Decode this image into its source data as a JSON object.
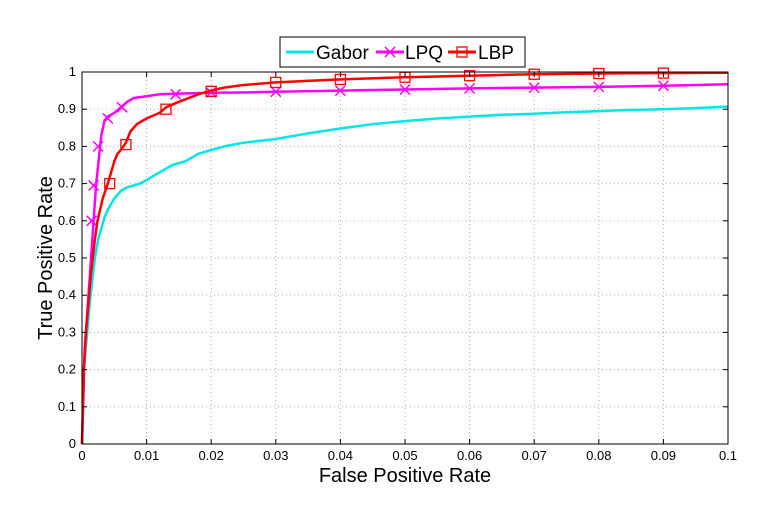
{
  "chart_data": {
    "type": "line",
    "title": "",
    "xlabel": "False Positive Rate",
    "ylabel": "True Positive Rate",
    "xlim": [
      0,
      0.1
    ],
    "ylim": [
      0,
      1
    ],
    "grid": true,
    "legend_position": "top-center",
    "x_tick_labels": [
      "0",
      "0.01",
      "0.02",
      "0.03",
      "0.04",
      "0.05",
      "0.06",
      "0.07",
      "0.08",
      "0.09",
      "0.1"
    ],
    "y_tick_labels": [
      "0",
      "0.1",
      "0.2",
      "0.3",
      "0.4",
      "0.5",
      "0.6",
      "0.7",
      "0.8",
      "0.9",
      "1"
    ],
    "series": [
      {
        "name": "Gabor",
        "color": "#00e5e5",
        "marker": "none",
        "x": [
          0,
          0.0003,
          0.0008,
          0.0012,
          0.0016,
          0.002,
          0.0025,
          0.003,
          0.0035,
          0.004,
          0.005,
          0.006,
          0.007,
          0.008,
          0.009,
          0.01,
          0.012,
          0.014,
          0.016,
          0.018,
          0.02,
          0.022,
          0.025,
          0.03,
          0.035,
          0.04,
          0.045,
          0.05,
          0.055,
          0.06,
          0.065,
          0.07,
          0.075,
          0.08,
          0.085,
          0.09,
          0.095,
          0.1
        ],
        "y": [
          0,
          0.2,
          0.3,
          0.38,
          0.44,
          0.5,
          0.55,
          0.58,
          0.61,
          0.63,
          0.66,
          0.68,
          0.69,
          0.695,
          0.7,
          0.71,
          0.73,
          0.75,
          0.76,
          0.78,
          0.79,
          0.8,
          0.81,
          0.82,
          0.835,
          0.848,
          0.86,
          0.868,
          0.875,
          0.88,
          0.885,
          0.888,
          0.892,
          0.895,
          0.898,
          0.9,
          0.903,
          0.907
        ]
      },
      {
        "name": "LPQ",
        "color": "#ff00ff",
        "marker": "x",
        "x": [
          0,
          0.0004,
          0.0008,
          0.0012,
          0.0016,
          0.0018,
          0.002,
          0.0022,
          0.0025,
          0.0028,
          0.003,
          0.0035,
          0.004,
          0.005,
          0.006,
          0.007,
          0.008,
          0.01,
          0.012,
          0.015,
          0.02,
          0.025,
          0.03,
          0.04,
          0.05,
          0.06,
          0.07,
          0.08,
          0.09,
          0.1
        ],
        "y": [
          0,
          0.25,
          0.35,
          0.45,
          0.55,
          0.6,
          0.65,
          0.7,
          0.75,
          0.8,
          0.83,
          0.87,
          0.88,
          0.89,
          0.905,
          0.92,
          0.93,
          0.935,
          0.94,
          0.942,
          0.944,
          0.945,
          0.947,
          0.95,
          0.953,
          0.956,
          0.958,
          0.96,
          0.963,
          0.967
        ],
        "marker_x": [
          0.0015,
          0.0018,
          0.0025,
          0.004,
          0.0062,
          0.0145,
          0.02,
          0.03,
          0.04,
          0.05,
          0.06,
          0.07,
          0.08,
          0.09
        ],
        "marker_y": [
          0.6,
          0.695,
          0.8,
          0.875,
          0.905,
          0.94,
          0.945,
          0.947,
          0.95,
          0.953,
          0.956,
          0.958,
          0.96,
          0.963
        ]
      },
      {
        "name": "LBP",
        "color": "#ff0000",
        "marker": "square",
        "x": [
          0,
          0.0003,
          0.0006,
          0.001,
          0.0014,
          0.0018,
          0.002,
          0.0024,
          0.0028,
          0.0032,
          0.0036,
          0.004,
          0.0045,
          0.005,
          0.0055,
          0.006,
          0.0068,
          0.0075,
          0.0085,
          0.01,
          0.012,
          0.013,
          0.015,
          0.018,
          0.02,
          0.022,
          0.025,
          0.03,
          0.035,
          0.04,
          0.05,
          0.06,
          0.07,
          0.08,
          0.09,
          0.1
        ],
        "y": [
          0,
          0.2,
          0.3,
          0.38,
          0.46,
          0.52,
          0.55,
          0.6,
          0.63,
          0.66,
          0.68,
          0.7,
          0.73,
          0.76,
          0.78,
          0.79,
          0.81,
          0.84,
          0.86,
          0.875,
          0.89,
          0.905,
          0.92,
          0.94,
          0.95,
          0.958,
          0.965,
          0.972,
          0.976,
          0.98,
          0.986,
          0.99,
          0.994,
          0.996,
          0.997,
          0.998
        ],
        "marker_x": [
          0.0043,
          0.0068,
          0.013,
          0.02,
          0.03,
          0.04,
          0.05,
          0.06,
          0.07,
          0.08,
          0.09
        ],
        "marker_y": [
          0.7,
          0.805,
          0.9,
          0.948,
          0.972,
          0.98,
          0.986,
          0.99,
          0.994,
          0.996,
          0.997
        ]
      }
    ]
  }
}
